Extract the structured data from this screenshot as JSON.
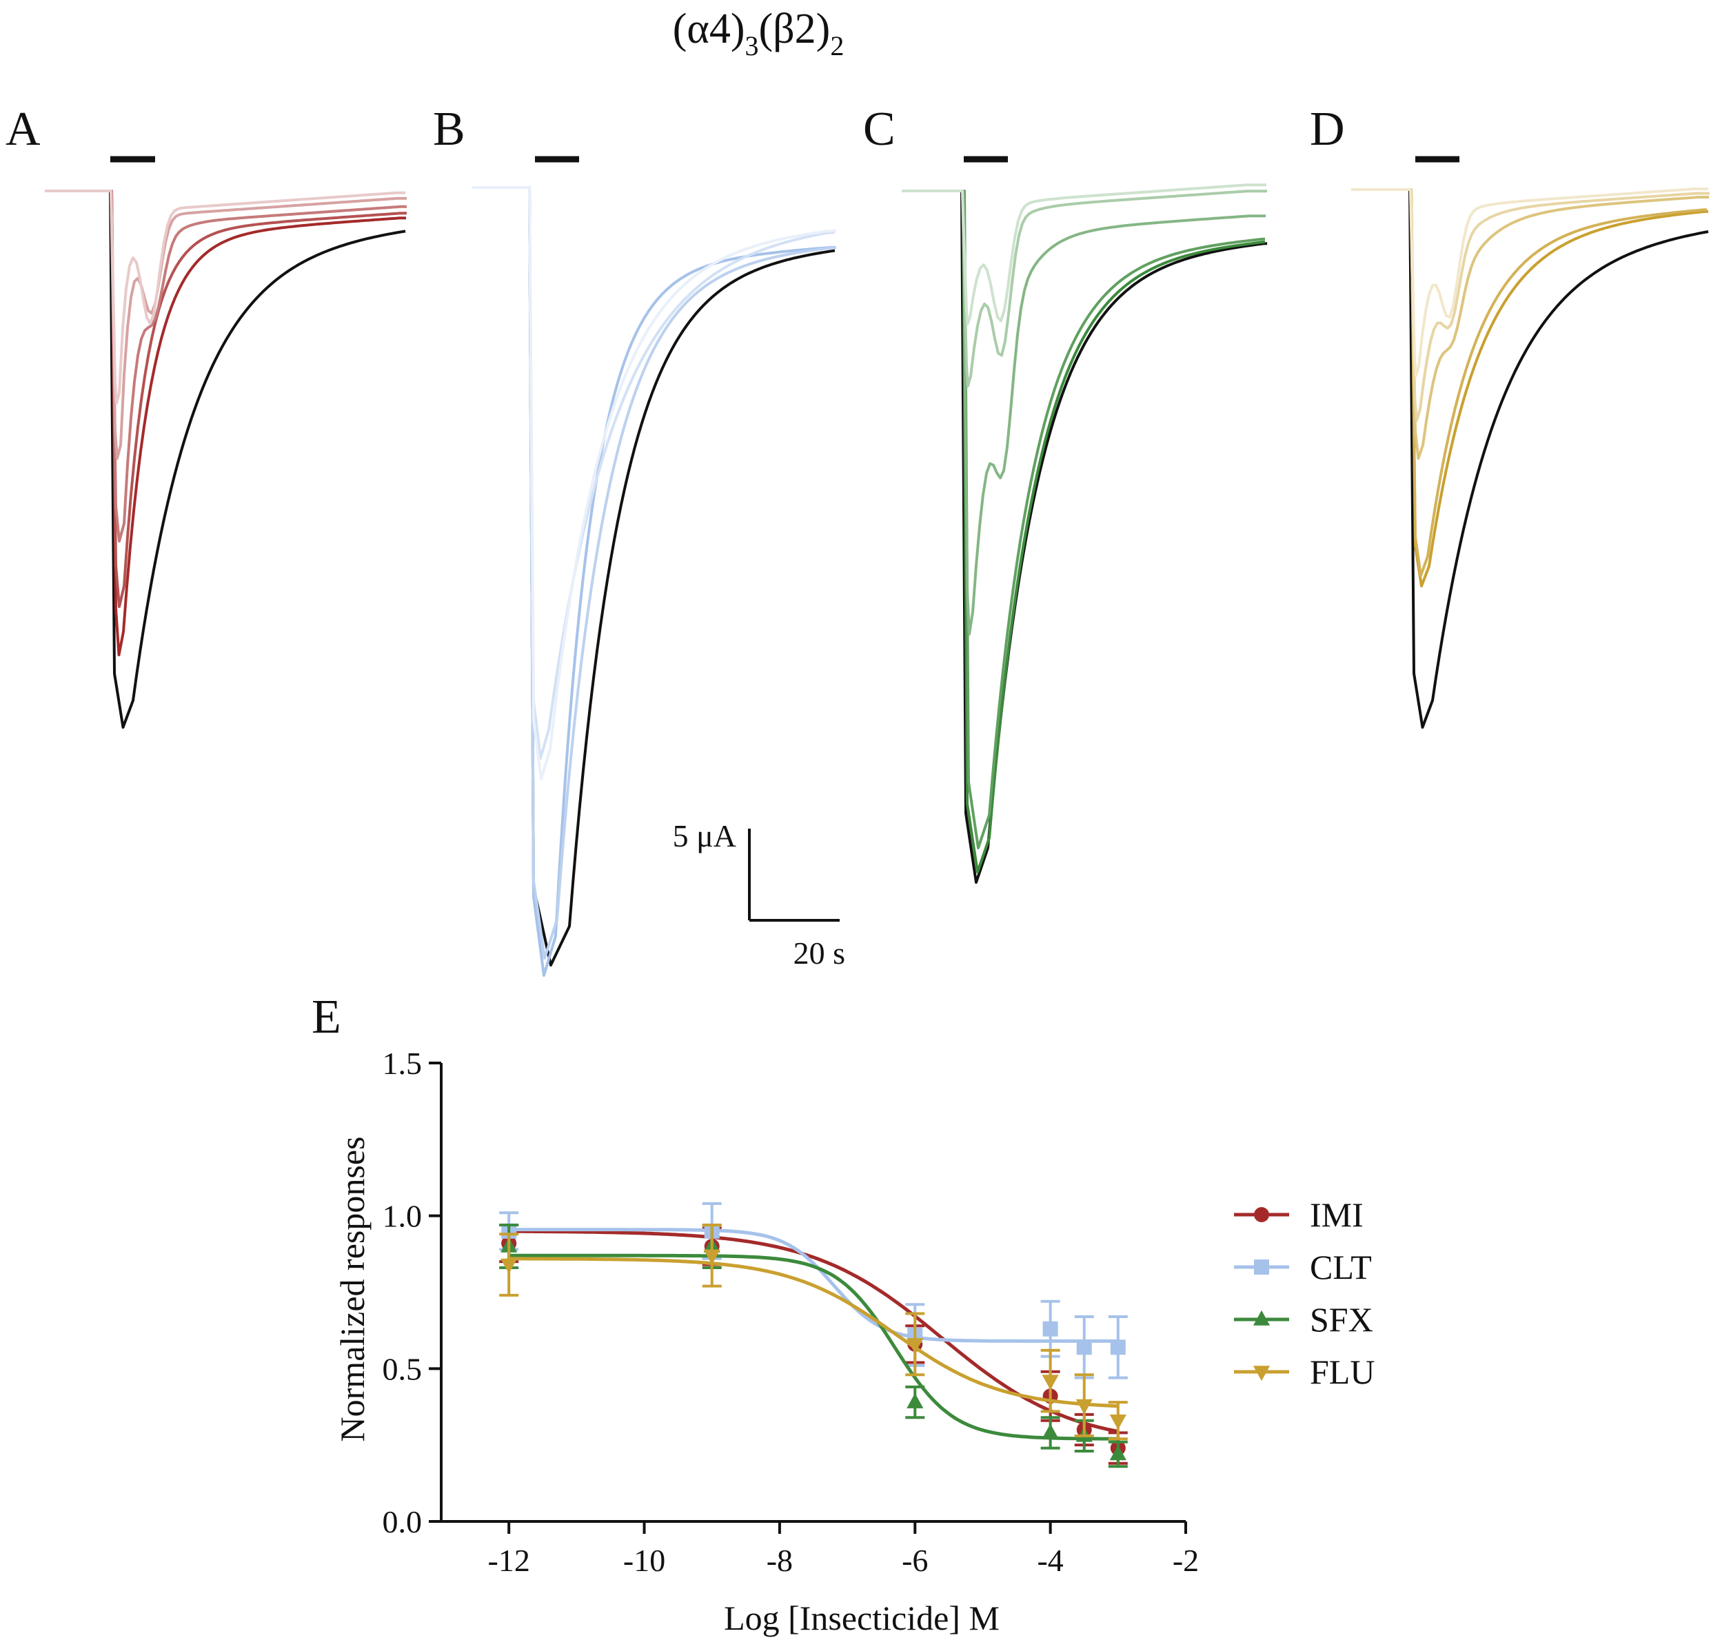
{
  "figure": {
    "title": {
      "main": "(α4)",
      "sub1": "3",
      "mid": "(β2)",
      "sub2": "2"
    },
    "panels": [
      {
        "label": "A",
        "color": "#a42a2a",
        "series_name": "IMI"
      },
      {
        "label": "B",
        "color": "#a6c2ea",
        "series_name": "CLT"
      },
      {
        "label": "C",
        "color": "#3c8a3c",
        "series_name": "SFX"
      },
      {
        "label": "D",
        "color": "#c9a030",
        "series_name": "FLU"
      }
    ],
    "control_color": "#111111",
    "scale_bar": {
      "current_label": "5 μA",
      "time_label": "20 s"
    }
  },
  "chart_data": {
    "type": "line",
    "panel_label": "E",
    "xlabel": "Log [Insecticide] M",
    "ylabel": "Normalized responses",
    "xlim": [
      -13,
      -2
    ],
    "ylim": [
      0,
      1.5
    ],
    "x_ticks": [
      -12,
      -10,
      -8,
      -6,
      -4,
      -2
    ],
    "y_ticks": [
      0.0,
      0.5,
      1.0,
      1.5
    ],
    "x_tick_labels": [
      "-12",
      "-10",
      "-8",
      "-6",
      "-4",
      "-2"
    ],
    "y_tick_labels": [
      "0.0",
      "0.5",
      "1.0",
      "1.5"
    ],
    "legend_position": "right",
    "grid": false,
    "x": [
      -12,
      -9,
      -6,
      -4,
      -3.5,
      -3
    ],
    "series": [
      {
        "name": "IMI",
        "color": "#a42a2a",
        "marker": "circle",
        "values": [
          0.91,
          0.9,
          0.58,
          0.41,
          0.3,
          0.24
        ],
        "errors": [
          0.06,
          0.06,
          0.06,
          0.08,
          0.05,
          0.05
        ],
        "fit": {
          "top": 0.95,
          "bottom": 0.25,
          "logEC50": -5.6,
          "hill": 0.45
        }
      },
      {
        "name": "CLT",
        "color": "#a6c2ea",
        "marker": "square",
        "values": [
          0.95,
          0.95,
          0.61,
          0.63,
          0.57,
          0.57
        ],
        "errors": [
          0.06,
          0.09,
          0.1,
          0.09,
          0.1,
          0.1
        ],
        "fit": {
          "top": 0.955,
          "bottom": 0.59,
          "logEC50": -7.2,
          "hill": 1.2
        }
      },
      {
        "name": "SFX",
        "color": "#3c8a3c",
        "marker": "triangle-up",
        "values": [
          0.9,
          0.9,
          0.39,
          0.29,
          0.28,
          0.22
        ],
        "errors": [
          0.07,
          0.07,
          0.05,
          0.05,
          0.05,
          0.04
        ],
        "fit": {
          "top": 0.87,
          "bottom": 0.27,
          "logEC50": -6.3,
          "hill": 1.0
        }
      },
      {
        "name": "FLU",
        "color": "#c9a030",
        "marker": "triangle-down",
        "values": [
          0.84,
          0.87,
          0.58,
          0.46,
          0.38,
          0.33
        ],
        "errors": [
          0.1,
          0.1,
          0.1,
          0.1,
          0.1,
          0.06
        ],
        "fit": {
          "top": 0.86,
          "bottom": 0.37,
          "logEC50": -6.3,
          "hill": 0.55
        }
      }
    ]
  }
}
